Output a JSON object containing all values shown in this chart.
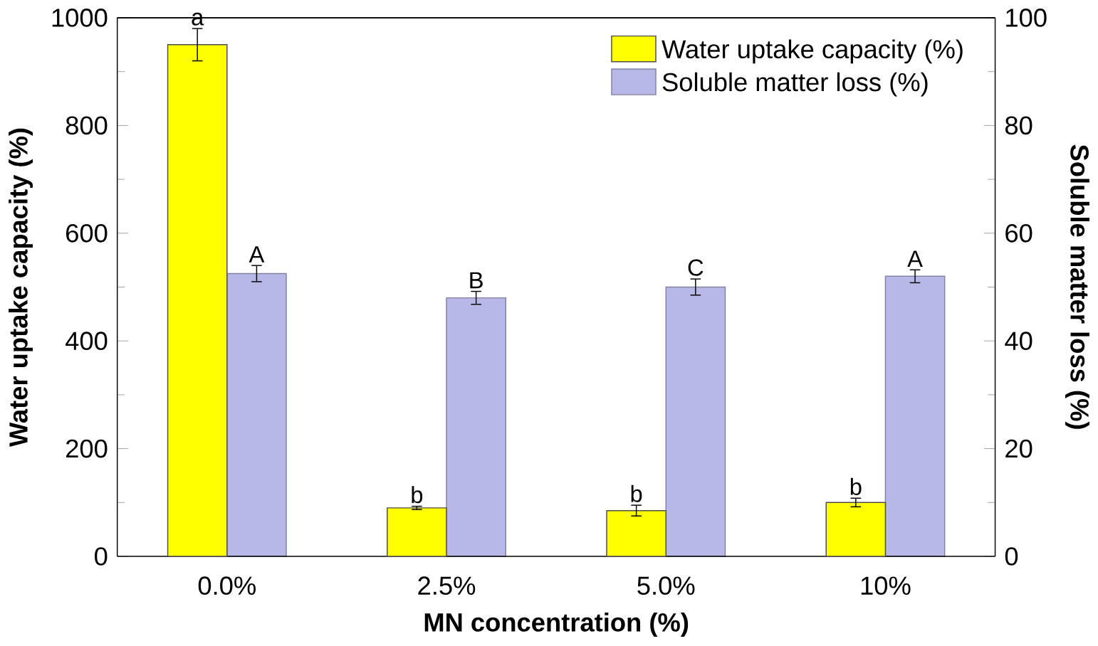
{
  "chart_data": {
    "type": "bar",
    "xlabel": "MN concentration (%)",
    "ylabel": "Water uptake capacity (%)",
    "y2label": "Soluble matter loss (%)",
    "categories": [
      "0.0%",
      "2.5%",
      "5.0%",
      "10%"
    ],
    "series": [
      {
        "name": "Water uptake capacity (%)",
        "color": "#ffff00",
        "values": [
          950,
          90,
          85,
          100
        ],
        "errors": [
          30,
          3,
          10,
          8
        ]
      },
      {
        "name": "Soluble matter loss (%)",
        "color": "#b8b8e8",
        "axis": "y2",
        "values": [
          52.5,
          48,
          50,
          52
        ],
        "errors": [
          1.5,
          1.2,
          1.5,
          1.2
        ]
      }
    ],
    "ylim": [
      0,
      1000
    ],
    "yticks": [
      0,
      200,
      400,
      600,
      800,
      1000
    ],
    "y2lim": [
      0,
      100
    ],
    "y2ticks": [
      0,
      20,
      40,
      60,
      80,
      100
    ],
    "legend": "top right",
    "grid": false,
    "annotations": [
      {
        "text": "a",
        "x": "0.0%",
        "y": 950
      },
      {
        "text": "b",
        "x": "2.5%",
        "y": 90
      },
      {
        "text": "b",
        "x": "5.0%",
        "y": 85
      },
      {
        "text": "b",
        "x": "10%",
        "y": 100
      },
      {
        "text": "A",
        "x": "0.0%",
        "y": 525
      },
      {
        "text": "B",
        "x": "2.5%",
        "y": 480
      },
      {
        "text": "C",
        "x": "5.0%",
        "y": 500
      },
      {
        "text": "A",
        "x": "10%",
        "y": 520
      }
    ]
  }
}
